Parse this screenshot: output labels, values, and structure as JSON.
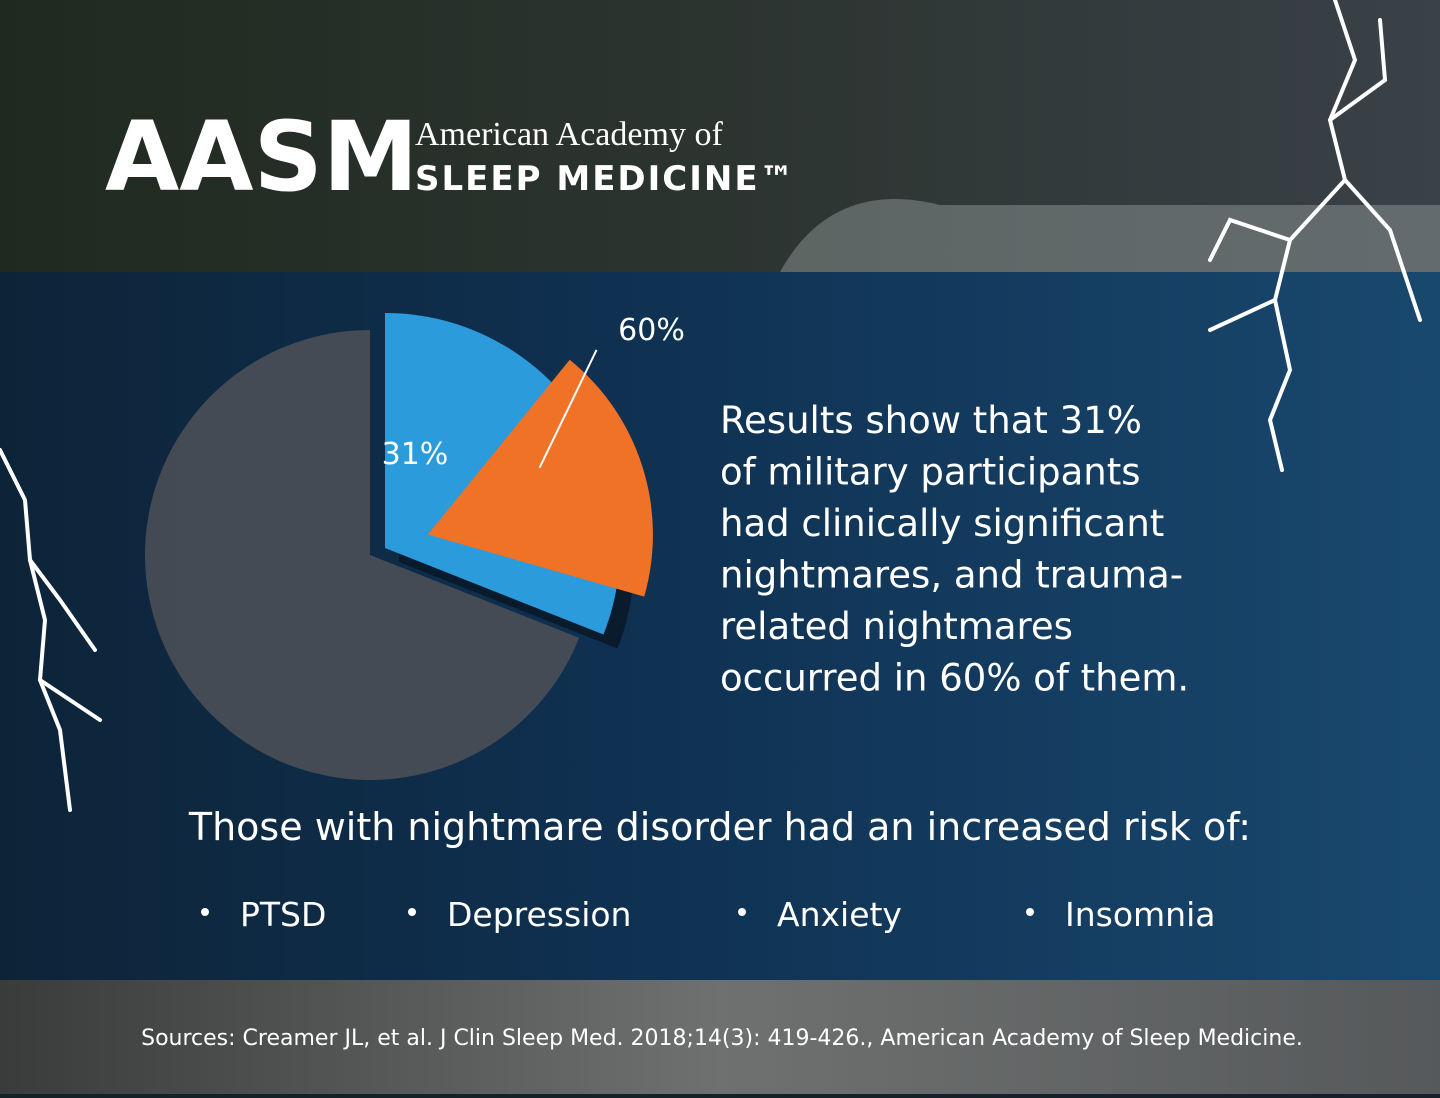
{
  "header": {
    "logo": "AASM",
    "org_line1": "American Academy of",
    "org_line2": "SLEEP MEDICINE™"
  },
  "chart_data": {
    "type": "pie",
    "slices": [
      {
        "value": 31,
        "label": "31%",
        "color": "#2b9bdc",
        "sub_slice": {
          "value": 60,
          "label": "60%",
          "color": "#f07227"
        }
      },
      {
        "value": 69,
        "color": "#4a4f56"
      }
    ]
  },
  "summary": {
    "lines": [
      "Results show that 31%",
      "of military participants",
      "had clinically significant",
      "nightmares, and trauma-",
      "related nightmares",
      "occurred in 60% of them."
    ]
  },
  "risks": {
    "heading": "Those with nightmare disorder had an increased risk of:",
    "items": [
      "PTSD",
      "Depression",
      "Anxiety",
      "Insomnia"
    ]
  },
  "footer": {
    "sources": "Sources: Creamer JL, et al. J Clin Sleep Med. 2018;14(3): 419-426., American Academy of Sleep Medicine."
  }
}
